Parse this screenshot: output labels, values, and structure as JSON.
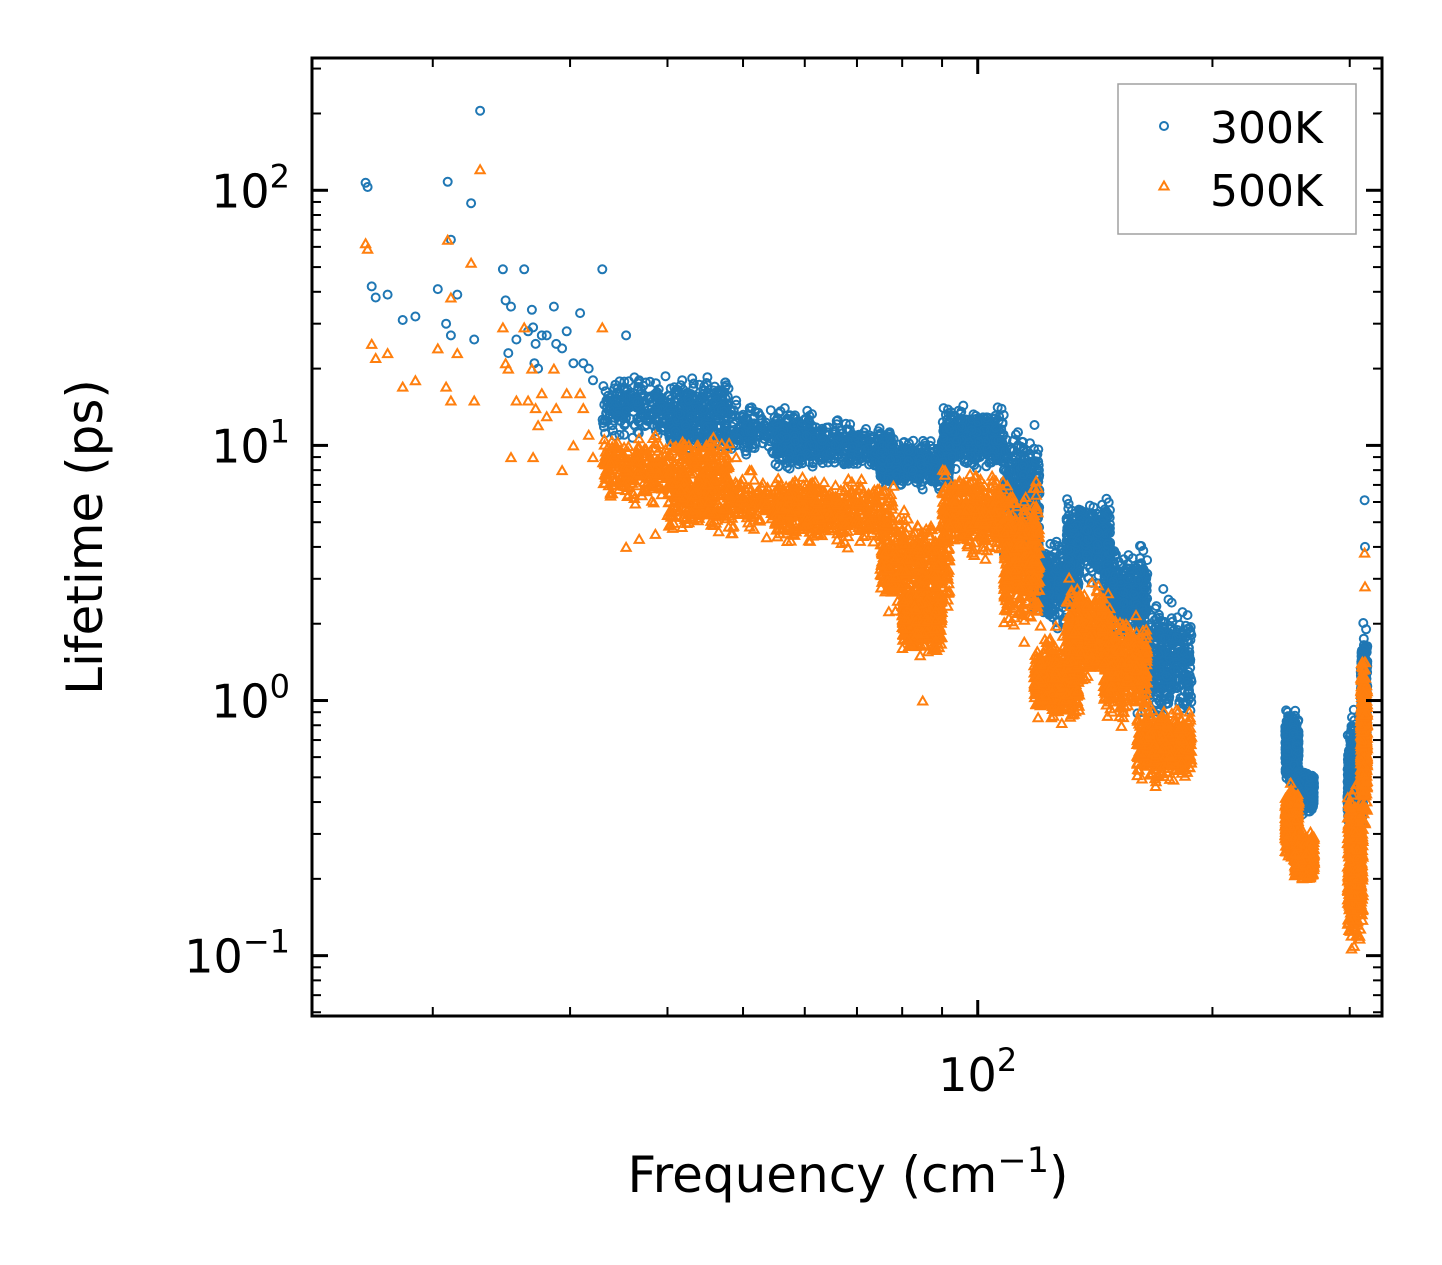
{
  "chart_data": {
    "type": "scatter",
    "title": "",
    "xlabel": "Frequency (cm",
    "xlabel_sup": "−1",
    "xlabel_suffix": ")",
    "ylabel": "Lifetime (ps)",
    "xscale": "log",
    "yscale": "log",
    "xlim": [
      14,
      330
    ],
    "ylim": [
      0.058,
      330
    ],
    "x_tick_labels": [
      {
        "value": 100,
        "base": "10",
        "exp": "2"
      }
    ],
    "y_tick_labels": [
      {
        "value": 0.1,
        "base": "10",
        "exp": "−1"
      },
      {
        "value": 1,
        "base": "10",
        "exp": "0"
      },
      {
        "value": 10,
        "base": "10",
        "exp": "1"
      },
      {
        "value": 100,
        "base": "10",
        "exp": "2"
      }
    ],
    "legend": {
      "position": "top-right"
    },
    "series": [
      {
        "name": "300K",
        "marker": "circle",
        "color": "#1f77b4",
        "points": [
          [
            16.4,
            107
          ],
          [
            16.5,
            103
          ],
          [
            16.7,
            42
          ],
          [
            16.9,
            38
          ],
          [
            17.5,
            39
          ],
          [
            18.3,
            31
          ],
          [
            19.0,
            32
          ],
          [
            20.3,
            41
          ],
          [
            20.8,
            30
          ],
          [
            20.9,
            108
          ],
          [
            21.1,
            64
          ],
          [
            21.1,
            27
          ],
          [
            21.5,
            39
          ],
          [
            22.4,
            89
          ],
          [
            22.6,
            26
          ],
          [
            23.0,
            205
          ],
          [
            24.6,
            49
          ],
          [
            24.8,
            37
          ],
          [
            25.0,
            23
          ],
          [
            25.2,
            35
          ],
          [
            25.6,
            26
          ],
          [
            26.2,
            49
          ],
          [
            26.5,
            28
          ],
          [
            26.8,
            34
          ],
          [
            26.9,
            29
          ],
          [
            27.1,
            25
          ],
          [
            27.0,
            21
          ],
          [
            27.3,
            20
          ],
          [
            27.6,
            27
          ],
          [
            28.0,
            27
          ],
          [
            28.6,
            35
          ],
          [
            28.8,
            25
          ],
          [
            29.3,
            24
          ],
          [
            29.7,
            28
          ],
          [
            30.3,
            21
          ],
          [
            30.9,
            33
          ],
          [
            31.2,
            21
          ],
          [
            31.7,
            20
          ],
          [
            32.1,
            18
          ],
          [
            33.0,
            49
          ],
          [
            33.4,
            15
          ],
          [
            34.0,
            12
          ],
          [
            35.4,
            27
          ],
          [
            36.8,
            18
          ],
          [
            38.6,
            14
          ],
          [
            42.6,
            15
          ],
          [
            46.0,
            17
          ],
          [
            49.0,
            15
          ],
          [
            51.0,
            14
          ]
        ],
        "clusters": [
          {
            "x": [
              33,
              48
            ],
            "y": [
              10,
              20
            ]
          },
          {
            "x": [
              40,
              62
            ],
            "y": [
              8.5,
              15
            ]
          },
          {
            "x": [
              55,
              78
            ],
            "y": [
              7.5,
              13
            ]
          },
          {
            "x": [
              75,
              92
            ],
            "y": [
              6.5,
              11
            ]
          },
          {
            "x": [
              90,
              108
            ],
            "y": [
              7.5,
              15
            ]
          },
          {
            "x": [
              108,
              120
            ],
            "y": [
              2.8,
              14
            ]
          },
          {
            "x": [
              118,
              135
            ],
            "y": [
              1.8,
              4.5
            ]
          },
          {
            "x": [
              130,
              148
            ],
            "y": [
              2.8,
              6.5
            ]
          },
          {
            "x": [
              145,
              165
            ],
            "y": [
              1.5,
              4.5
            ]
          },
          {
            "x": [
              160,
              188
            ],
            "y": [
              0.75,
              2.8
            ]
          },
          {
            "x": [
              248,
              258
            ],
            "y": [
              0.45,
              0.95
            ]
          },
          {
            "x": [
              255,
              270
            ],
            "y": [
              0.35,
              0.55
            ]
          },
          {
            "x": [
              298,
              312
            ],
            "y": [
              0.25,
              1.0
            ]
          },
          {
            "x": [
              310,
              316
            ],
            "y": [
              0.4,
              2.2
            ]
          }
        ],
        "outliers": [
          [
            313.5,
            6.1
          ],
          [
            313.8,
            4.0
          ]
        ]
      },
      {
        "name": "500K",
        "marker": "triangle",
        "color": "#ff7f0e",
        "points": [
          [
            16.4,
            62
          ],
          [
            16.5,
            59
          ],
          [
            16.7,
            25
          ],
          [
            16.9,
            22
          ],
          [
            17.5,
            23
          ],
          [
            18.3,
            17
          ],
          [
            19.0,
            18
          ],
          [
            20.3,
            24
          ],
          [
            20.8,
            17
          ],
          [
            20.9,
            64
          ],
          [
            21.1,
            38
          ],
          [
            21.1,
            15
          ],
          [
            21.5,
            23
          ],
          [
            22.4,
            52
          ],
          [
            22.6,
            15
          ],
          [
            23.0,
            121
          ],
          [
            24.6,
            29
          ],
          [
            24.8,
            21
          ],
          [
            25.0,
            20
          ],
          [
            25.2,
            9
          ],
          [
            25.6,
            15
          ],
          [
            26.2,
            29
          ],
          [
            26.5,
            15
          ],
          [
            26.8,
            20
          ],
          [
            26.9,
            9
          ],
          [
            27.1,
            14
          ],
          [
            27.3,
            12
          ],
          [
            27.6,
            16
          ],
          [
            28.0,
            13
          ],
          [
            28.6,
            20
          ],
          [
            28.8,
            14
          ],
          [
            29.3,
            8
          ],
          [
            29.7,
            16
          ],
          [
            30.3,
            10
          ],
          [
            30.9,
            16
          ],
          [
            31.2,
            14
          ],
          [
            31.7,
            11
          ],
          [
            32.1,
            9
          ],
          [
            33.0,
            29
          ],
          [
            33.4,
            8
          ],
          [
            34.0,
            7
          ],
          [
            35.4,
            4
          ],
          [
            36.8,
            4.3
          ],
          [
            38.6,
            4.5
          ],
          [
            42.6,
            5
          ],
          [
            46.0,
            10
          ],
          [
            49.0,
            9
          ],
          [
            51.0,
            8
          ]
        ],
        "clusters": [
          {
            "x": [
              33,
              48
            ],
            "y": [
              5.5,
              12
            ]
          },
          {
            "x": [
              40,
              62
            ],
            "y": [
              4.2,
              8.5
            ]
          },
          {
            "x": [
              55,
              78
            ],
            "y": [
              3.8,
              8
            ]
          },
          {
            "x": [
              75,
              92
            ],
            "y": [
              2.0,
              6
            ]
          },
          {
            "x": [
              80,
              90
            ],
            "y": [
              1.4,
              3
            ]
          },
          {
            "x": [
              90,
              108
            ],
            "y": [
              3.5,
              8.5
            ]
          },
          {
            "x": [
              108,
              120
            ],
            "y": [
              1.6,
              8
            ]
          },
          {
            "x": [
              118,
              135
            ],
            "y": [
              0.75,
              2.0
            ]
          },
          {
            "x": [
              130,
              148
            ],
            "y": [
              1.1,
              3.2
            ]
          },
          {
            "x": [
              145,
              165
            ],
            "y": [
              0.75,
              2.3
            ]
          },
          {
            "x": [
              160,
              188
            ],
            "y": [
              0.45,
              1.0
            ]
          },
          {
            "x": [
              248,
              258
            ],
            "y": [
              0.22,
              0.5
            ]
          },
          {
            "x": [
              255,
              270
            ],
            "y": [
              0.19,
              0.32
            ]
          },
          {
            "x": [
              298,
              312
            ],
            "y": [
              0.09,
              0.55
            ]
          },
          {
            "x": [
              310,
              316
            ],
            "y": [
              0.3,
              1.7
            ]
          }
        ],
        "outliers": [
          [
            313.5,
            3.8
          ],
          [
            313.8,
            2.8
          ],
          [
            85,
            1.0
          ]
        ]
      }
    ]
  },
  "colors": {
    "axis": "#000000",
    "legend_border": "#a0a0a0"
  }
}
